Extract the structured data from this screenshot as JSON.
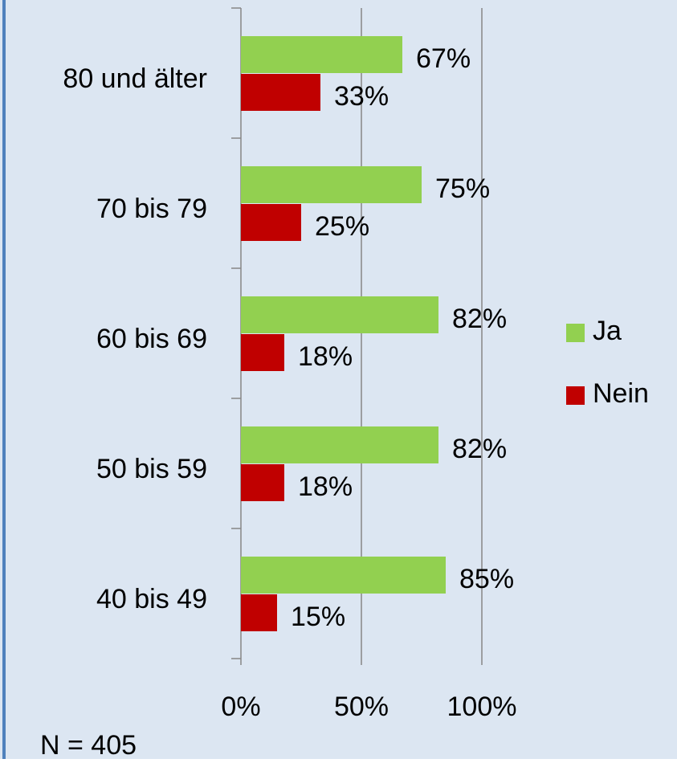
{
  "chart_data": {
    "type": "hbar",
    "categories": [
      "80 und älter",
      "70 bis 79",
      "60 bis 69",
      "50 bis 59",
      "40 bis 49"
    ],
    "series": [
      {
        "name": "Ja",
        "color": "#92d050",
        "values": [
          67,
          75,
          82,
          82,
          85
        ],
        "value_labels": [
          "67%",
          "75%",
          "82%",
          "82%",
          "85%"
        ]
      },
      {
        "name": "Nein",
        "color": "#c00000",
        "values": [
          33,
          25,
          18,
          18,
          15
        ],
        "value_labels": [
          "33%",
          "25%",
          "18%",
          "18%",
          "15%"
        ]
      }
    ],
    "xlim": [
      0,
      100
    ],
    "xticks": [
      {
        "value": 0,
        "label": "0%"
      },
      {
        "value": 50,
        "label": "50%"
      },
      {
        "value": 100,
        "label": "100%"
      }
    ],
    "grid": true,
    "legend": "right",
    "annotation": "N = 405"
  }
}
